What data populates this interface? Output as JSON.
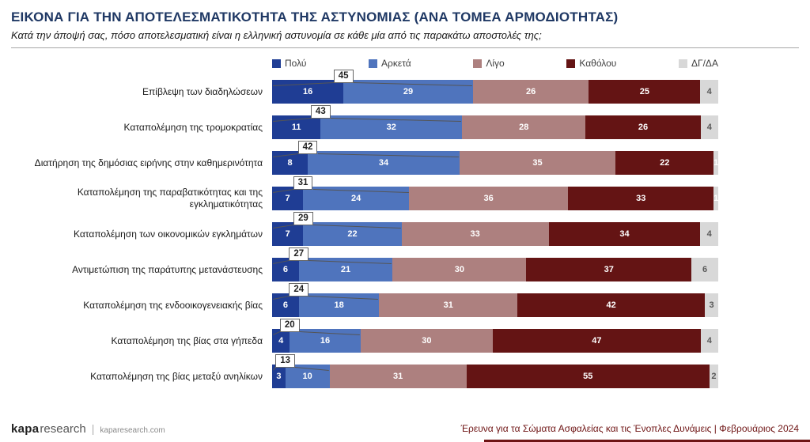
{
  "header": {
    "title": "ΕΙΚΟΝΑ ΓΙΑ ΤΗΝ ΑΠΟΤΕΛΕΣΜΑΤΙΚΟΤΗΤΑ ΤΗΣ ΑΣΤΥΝΟΜΙΑΣ (ΑΝΑ ΤΟΜΕΑ ΑΡΜΟΔΙΟΤΗΤΑΣ)",
    "subtitle": "Κατά την άποψή σας, πόσο αποτελεσματική είναι η ελληνική αστυνομία σε κάθε μία από τις παρακάτω αποστολές της;"
  },
  "chart_data": {
    "type": "bar",
    "orientation": "horizontal",
    "stacked": true,
    "unit": "percent",
    "xlim": [
      0,
      100
    ],
    "legend_position": "top",
    "grid": false,
    "categories": [
      "Επίβλεψη των διαδηλώσεων",
      "Καταπολέμηση της τρομοκρατίας",
      "Διατήρηση της δημόσιας ειρήνης στην καθημερινότητα",
      "Καταπολέμηση της παραβατικότητας και της εγκληματικότητας",
      "Καταπολέμηση των οικονομικών εγκλημάτων",
      "Αντιμετώπιση της παράτυπης μετανάστευσης",
      "Καταπολέμηση της ενδοοικογενειακής βίας",
      "Καταπολέμηση της βίας στα γήπεδα",
      "Καταπολέμηση της βίας μεταξύ ανηλίκων"
    ],
    "series": [
      {
        "name": "Πολύ",
        "color": "#1f3d94",
        "values": [
          16,
          11,
          8,
          7,
          7,
          6,
          6,
          4,
          3
        ]
      },
      {
        "name": "Αρκετά",
        "color": "#4f74bd",
        "values": [
          29,
          32,
          34,
          24,
          22,
          21,
          18,
          16,
          10
        ]
      },
      {
        "name": "Λίγο",
        "color": "#ad807f",
        "values": [
          26,
          28,
          35,
          36,
          33,
          30,
          31,
          30,
          31
        ]
      },
      {
        "name": "Καθόλου",
        "color": "#641414",
        "values": [
          25,
          26,
          22,
          33,
          34,
          37,
          42,
          47,
          55
        ]
      },
      {
        "name": "ΔΓ/ΔΑ",
        "color": "#d8d8d8",
        "label_color": "#595959",
        "values": [
          4,
          4,
          1,
          1,
          4,
          6,
          3,
          4,
          2
        ]
      }
    ],
    "top2_totals": [
      45,
      43,
      42,
      31,
      29,
      27,
      24,
      20,
      13
    ]
  },
  "footer": {
    "brand_bold": "kapa",
    "brand_light": "research",
    "website": "kaparesearch.com",
    "source": "Έρευνα για τα Σώματα Ασφαλείας και τις Ένοπλες Δυνάμεις | Φεβρουάριος 2024"
  }
}
